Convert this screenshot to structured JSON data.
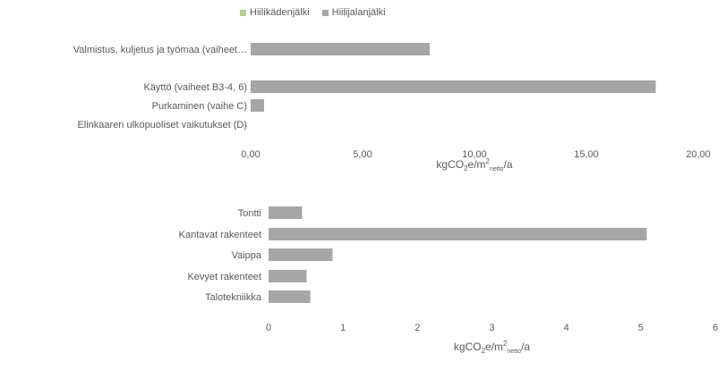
{
  "legend": {
    "items": [
      {
        "label": "Hiilikädenjälki",
        "color": "#a9d08e"
      },
      {
        "label": "Hiilijalanjälki",
        "color": "#a6a6a6"
      }
    ]
  },
  "chart_data": [
    {
      "type": "bar",
      "orientation": "horizontal",
      "categories": [
        "Valmistus, kuljetus ja työmaa (vaiheet…",
        "Käyttö (vaiheet B3-4, 6)",
        "Purkaminen (vaihe C)",
        "Elinkaaren ulkopuoliset vaikutukset (D)"
      ],
      "series": [
        {
          "name": "Hiilijalanjälki",
          "values": [
            8.0,
            18.1,
            0.6,
            0.0
          ],
          "color": "#a6a6a6"
        },
        {
          "name": "Hiilikädenjälki",
          "values": [
            0,
            0,
            0,
            0
          ],
          "color": "#a9d08e"
        }
      ],
      "xlim": [
        0,
        20
      ],
      "xticks": [
        "0,00",
        "5,00",
        "10,00",
        "15,00",
        "20,00"
      ],
      "xlabel": {
        "base": "kgCO",
        "sub1": "2",
        "mid": "e/m",
        "sup": "2",
        "sub2": "netto",
        "end": "/a"
      }
    },
    {
      "type": "bar",
      "orientation": "horizontal",
      "categories": [
        "Tontti",
        "Kantavat rakenteet",
        "Vaippa",
        "Kevyet rakenteet",
        "Talotekniikka"
      ],
      "series": [
        {
          "name": "Hiilijalanjälki",
          "values": [
            0.45,
            5.08,
            0.86,
            0.51,
            0.56
          ],
          "color": "#a6a6a6"
        }
      ],
      "xlim": [
        0,
        6
      ],
      "xticks": [
        "0",
        "1",
        "2",
        "3",
        "4",
        "5",
        "6"
      ],
      "xlabel": {
        "base": "kgCO",
        "sub1": "2",
        "mid": "e/m",
        "sup": "2",
        "sub2": "netto",
        "end": "/a"
      }
    }
  ]
}
